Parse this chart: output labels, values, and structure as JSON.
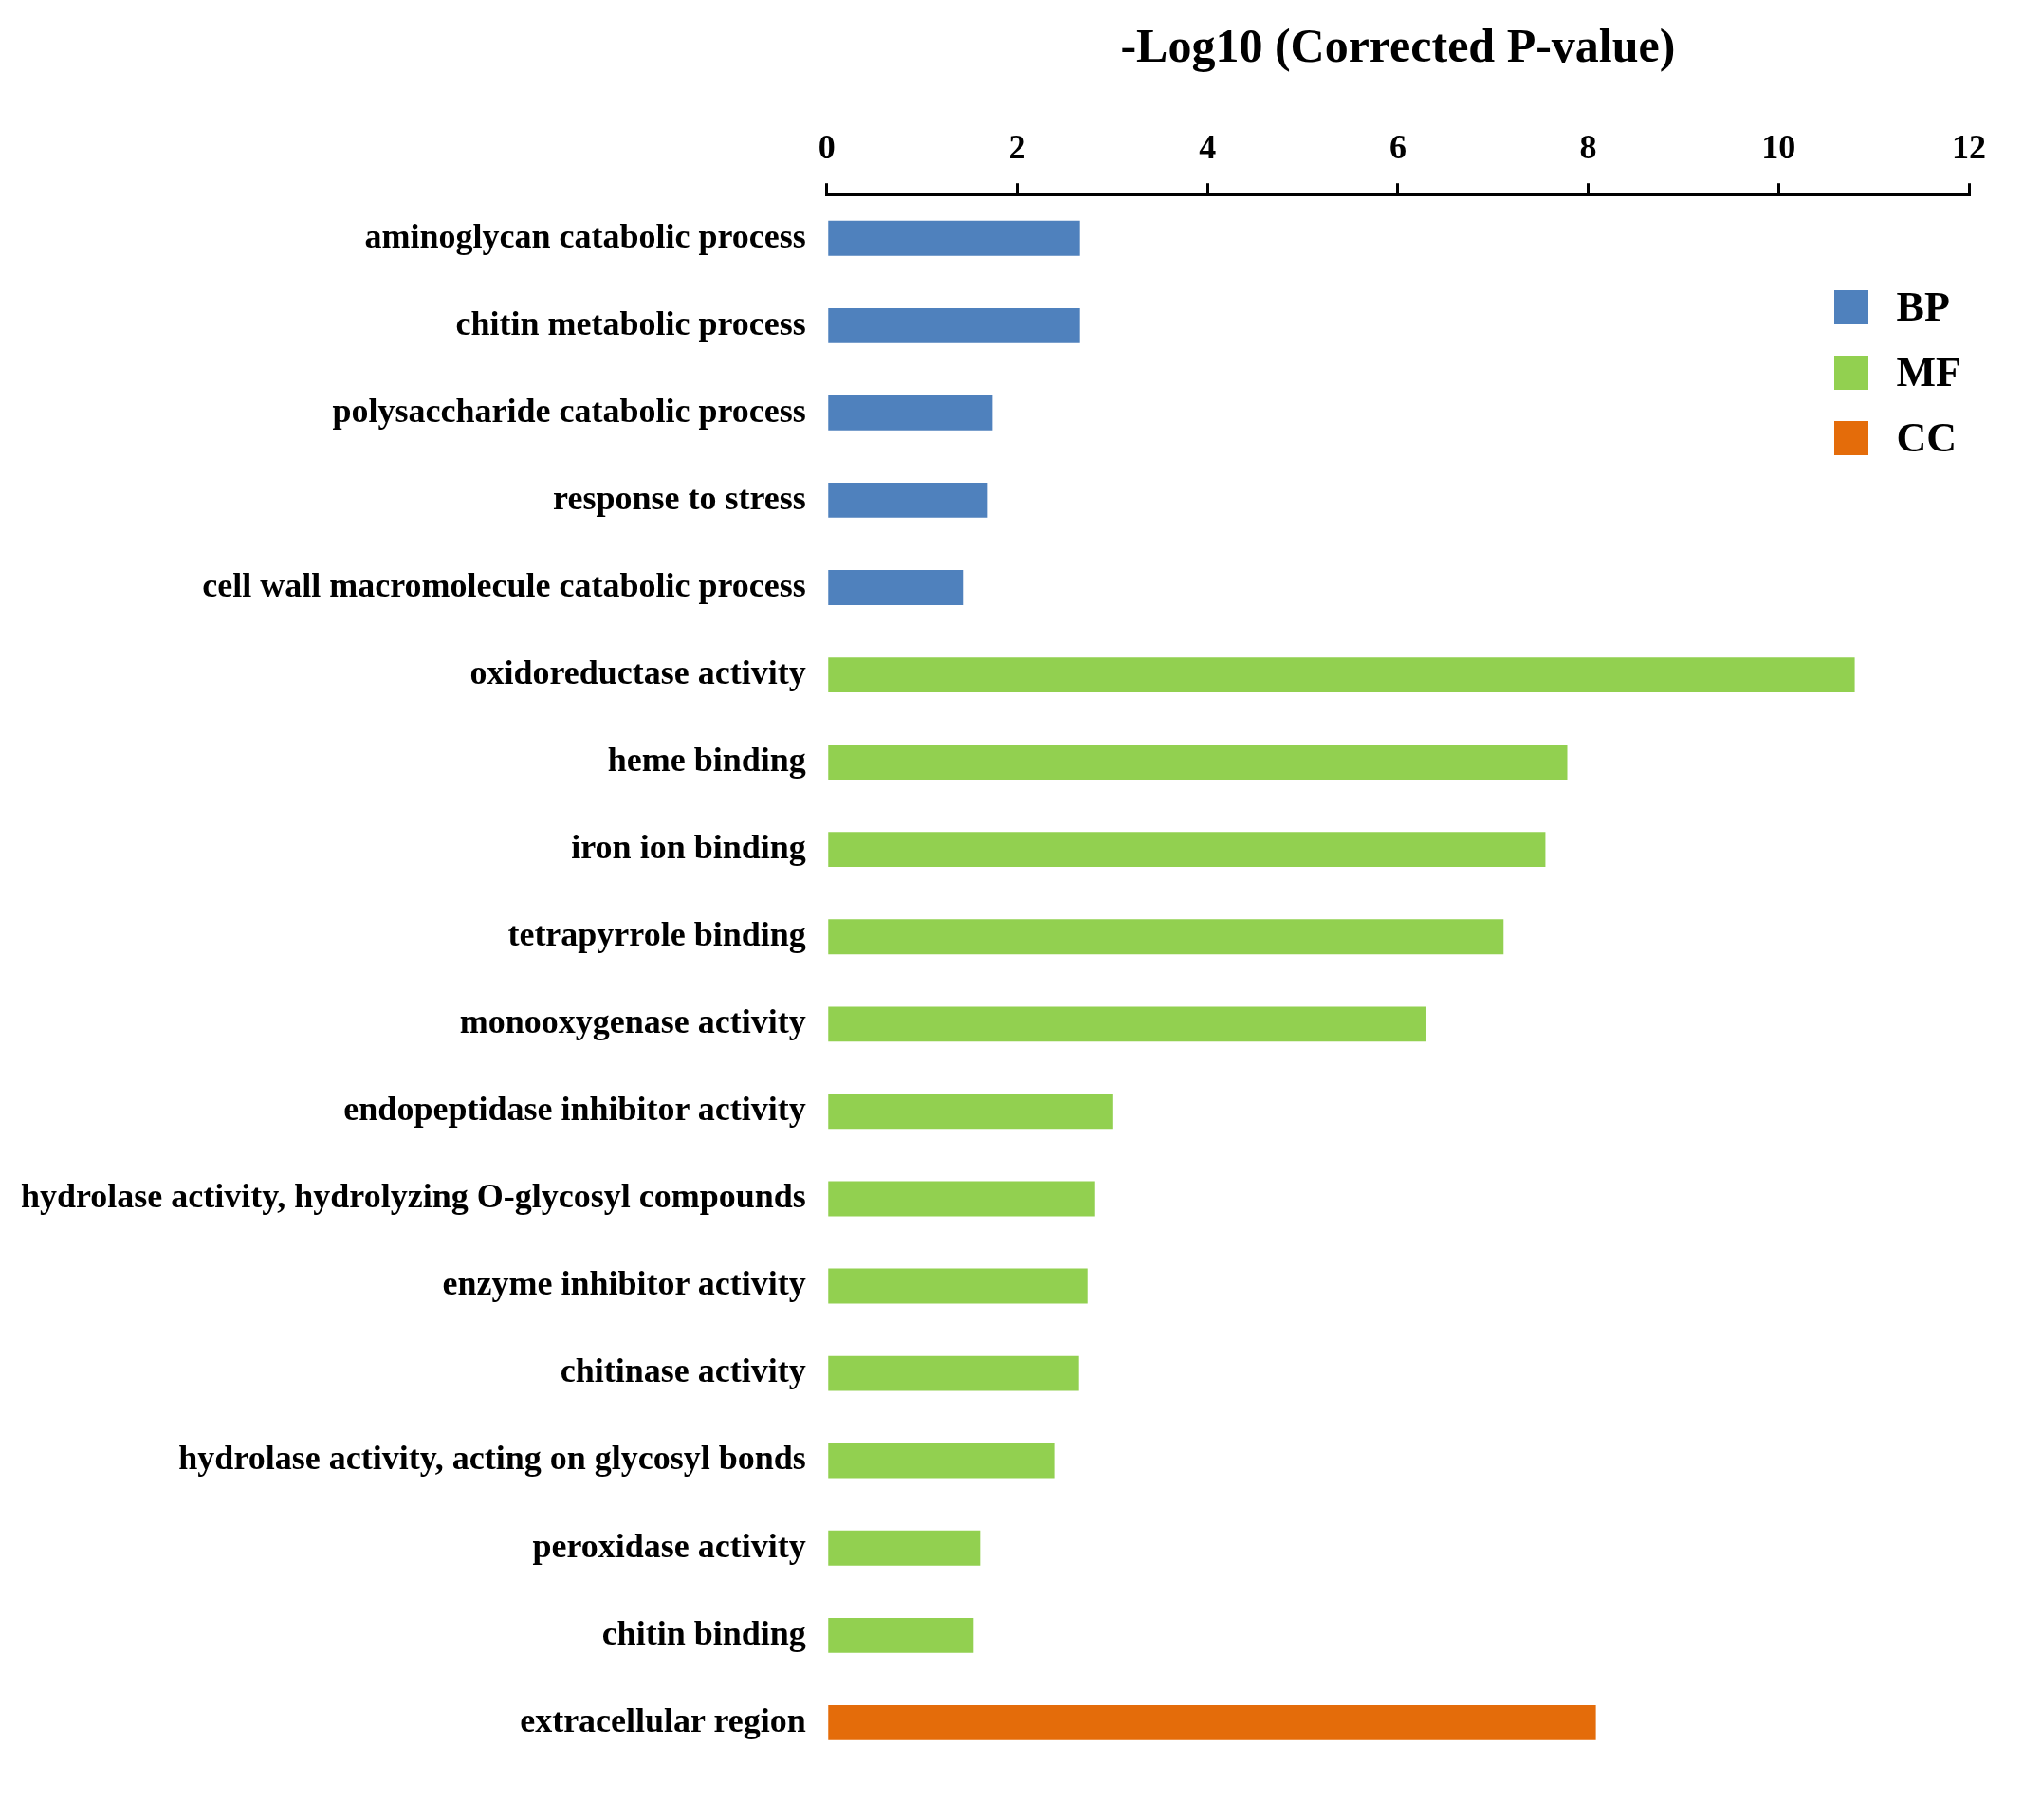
{
  "chart_data": {
    "type": "bar",
    "orientation": "horizontal",
    "xlabel": "-Log10 (Corrected P-value)",
    "categories": [
      "aminoglycan catabolic process",
      "chitin metabolic process",
      "polysaccharide catabolic process",
      "response to stress",
      "cell wall macromolecule catabolic process",
      "oxidoreductase activity",
      "heme binding",
      "iron ion binding",
      "tetrapyrrole binding",
      "monooxygenase activity",
      "endopeptidase inhibitor activity",
      "hydrolase activity, hydrolyzing O-glycosyl compounds",
      "enzyme inhibitor activity",
      "chitinase activity",
      "hydrolase activity, acting on glycosyl bonds",
      "peroxidase activity",
      "chitin binding",
      "extracellular region"
    ],
    "series": [
      {
        "name": "BP",
        "color": "#4f81bd",
        "values": [
          2.66,
          2.66,
          1.74,
          1.69,
          1.43,
          null,
          null,
          null,
          null,
          null,
          null,
          null,
          null,
          null,
          null,
          null,
          null,
          null
        ]
      },
      {
        "name": "MF",
        "color": "#92d050",
        "values": [
          null,
          null,
          null,
          null,
          null,
          10.8,
          7.78,
          7.55,
          7.11,
          6.3,
          3.0,
          2.82,
          2.74,
          2.65,
          2.39,
          1.61,
          1.54,
          null
        ]
      },
      {
        "name": "CC",
        "color": "#e46c0a",
        "values": [
          null,
          null,
          null,
          null,
          null,
          null,
          null,
          null,
          null,
          null,
          null,
          null,
          null,
          null,
          null,
          null,
          null,
          8.08
        ]
      }
    ],
    "xlim": [
      0,
      12
    ],
    "xticks": [
      0,
      2,
      4,
      6,
      8,
      10,
      12
    ],
    "grid": false,
    "legend": "top right"
  }
}
